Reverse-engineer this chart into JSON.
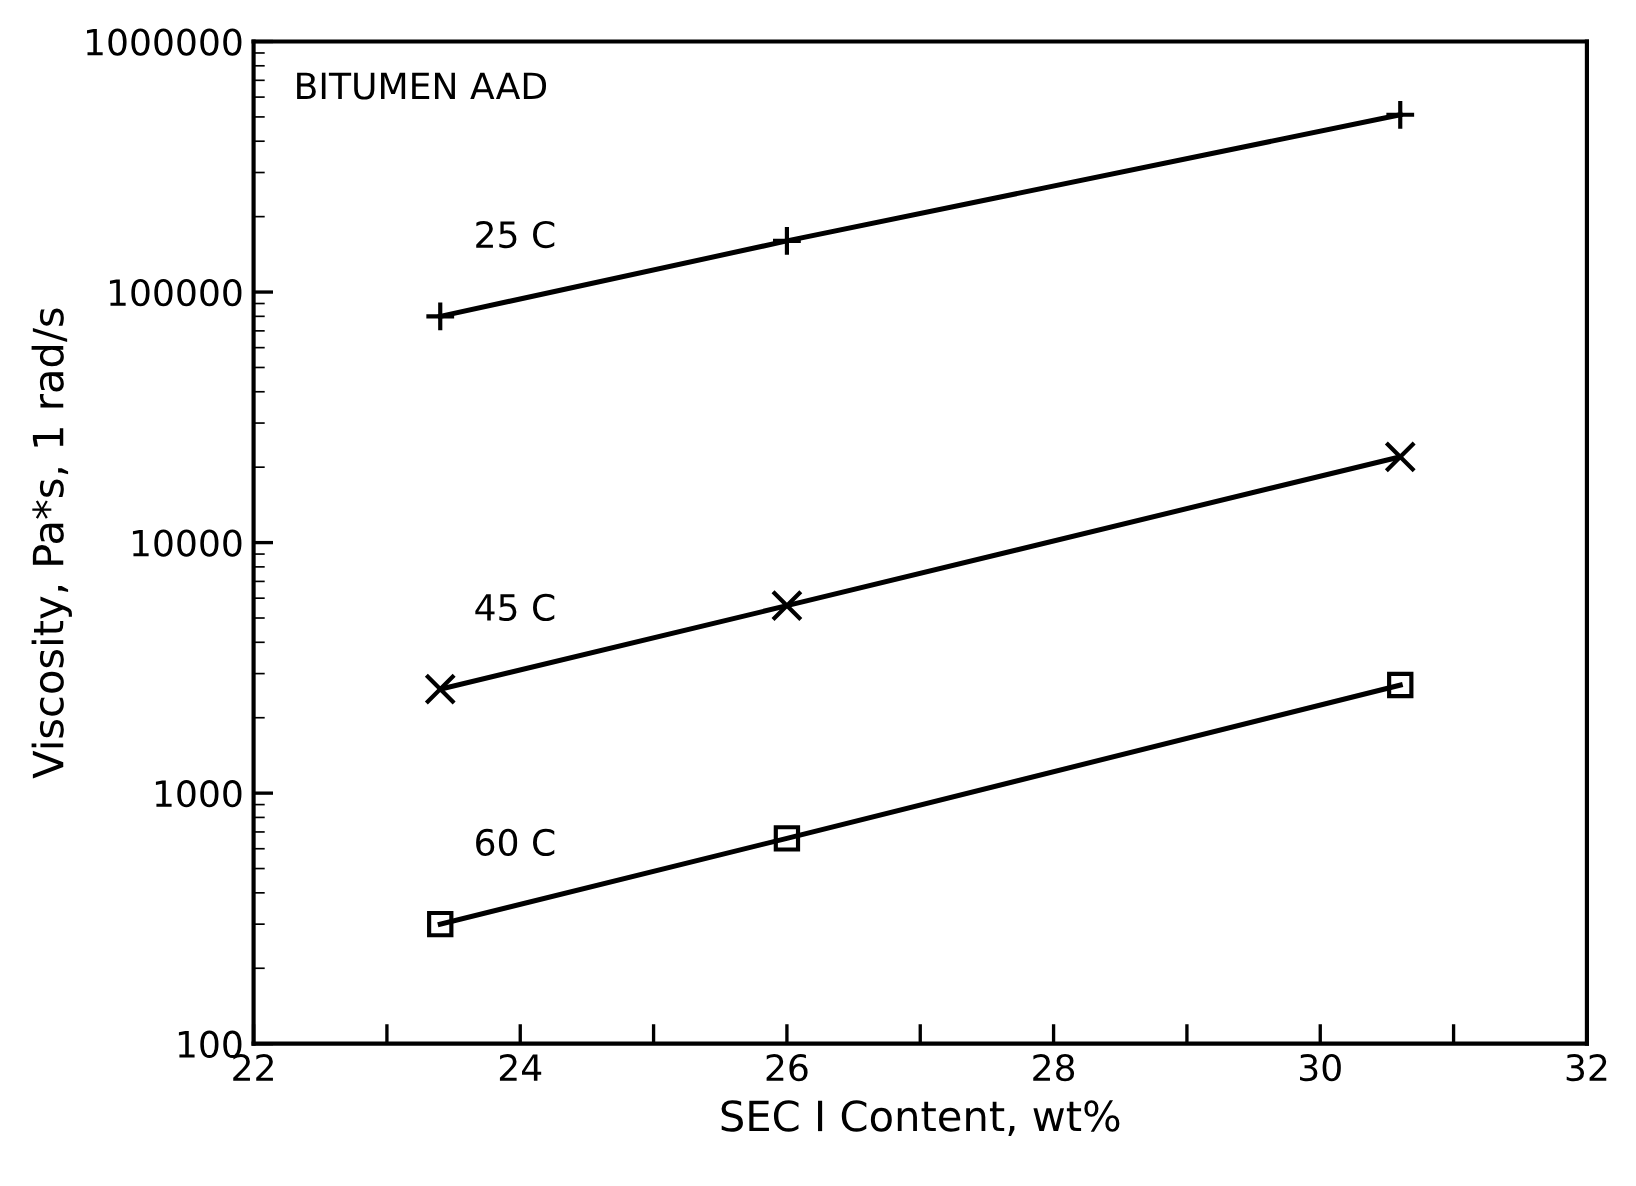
{
  "chart_data": {
    "type": "line",
    "xlabel": "SEC I Content, wt%",
    "ylabel": "Viscosity, Pa*s, 1 rad/s",
    "log": "y",
    "grid": false,
    "legend": false,
    "annotations": [
      "BITUMEN AAD"
    ],
    "x": [
      23.4,
      26.0,
      30.6
    ],
    "xlim": [
      22,
      32
    ],
    "xticks": [
      22,
      {
        "value": 23,
        "label": null
      },
      24,
      {
        "value": 25,
        "label": null
      },
      26,
      {
        "value": 27,
        "label": null
      },
      28,
      {
        "value": 29,
        "label": null
      },
      30,
      {
        "value": 31,
        "label": null
      },
      32
    ],
    "ylim": [
      100,
      1000000
    ],
    "yticks": [
      100,
      1000,
      10000,
      100000,
      1000000
    ],
    "series": [
      {
        "name": "25 C",
        "color": "#000000",
        "marker": "plus",
        "values": [
          80000,
          160000,
          510000
        ]
      },
      {
        "name": "45 C",
        "color": "#000000",
        "marker": "cross",
        "values": [
          2600,
          5600,
          22000
        ]
      },
      {
        "name": "60 C",
        "color": "#000000",
        "marker": "square",
        "values": [
          300,
          660,
          2700
        ]
      }
    ]
  }
}
